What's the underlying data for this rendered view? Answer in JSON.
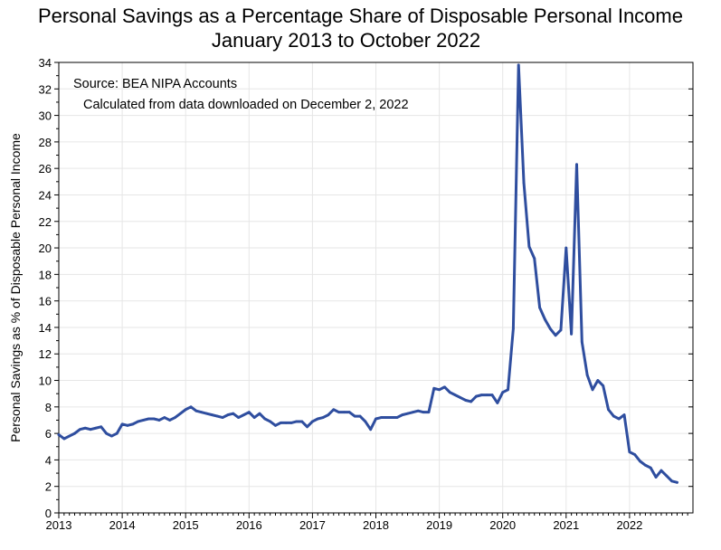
{
  "chart_data": {
    "type": "line",
    "title": "Personal Savings as a Percentage Share of Disposable Personal Income",
    "subtitle": "January 2013 to October 2022",
    "xlabel": "",
    "ylabel": "Personal Savings as % of Disposable Personal Income",
    "xlim": [
      2013,
      2023
    ],
    "ylim": [
      0,
      34
    ],
    "y_ticks": [
      0,
      2,
      4,
      6,
      8,
      10,
      12,
      14,
      16,
      18,
      20,
      22,
      24,
      26,
      28,
      30,
      32,
      34
    ],
    "x_ticks": [
      "2013",
      "2014",
      "2015",
      "2016",
      "2017",
      "2018",
      "2019",
      "2020",
      "2021",
      "2022"
    ],
    "grid": true,
    "annotations": [
      "Source:  BEA NIPA Accounts",
      "Calculated from data downloaded on December 2, 2022"
    ],
    "line_color": "#2f4e9f",
    "series": [
      {
        "values": [
          5.9,
          5.6,
          5.8,
          6.0,
          6.3,
          6.4,
          6.3,
          6.4,
          6.5,
          6.0,
          5.8,
          6.0,
          6.7,
          6.6,
          6.7,
          6.9,
          7.0,
          7.1,
          7.1,
          7.0,
          7.2,
          7.0,
          7.2,
          7.5,
          7.8,
          8.0,
          7.7,
          7.6,
          7.5,
          7.4,
          7.3,
          7.2,
          7.4,
          7.5,
          7.2,
          7.4,
          7.6,
          7.2,
          7.5,
          7.1,
          6.9,
          6.6,
          6.8,
          6.8,
          6.8,
          6.9,
          6.9,
          6.5,
          6.9,
          7.1,
          7.2,
          7.4,
          7.8,
          7.6,
          7.6,
          7.6,
          7.3,
          7.3,
          6.9,
          6.3,
          7.1,
          7.2,
          7.2,
          7.2,
          7.2,
          7.4,
          7.5,
          7.6,
          7.7,
          7.6,
          7.6,
          9.4,
          9.3,
          9.5,
          9.1,
          8.9,
          8.7,
          8.5,
          8.4,
          8.8,
          8.9,
          8.9,
          8.9,
          8.3,
          9.1,
          9.3,
          13.9,
          33.8,
          24.9,
          20.1,
          19.2,
          15.5,
          14.6,
          13.9,
          13.4,
          13.8,
          20.0,
          13.5,
          26.3,
          12.9,
          10.4,
          9.3,
          10.0,
          9.6,
          7.8,
          7.3,
          7.1,
          7.4,
          4.6,
          4.4,
          3.9,
          3.6,
          3.4,
          2.7,
          3.2,
          2.8,
          2.4,
          2.3
        ]
      }
    ]
  }
}
